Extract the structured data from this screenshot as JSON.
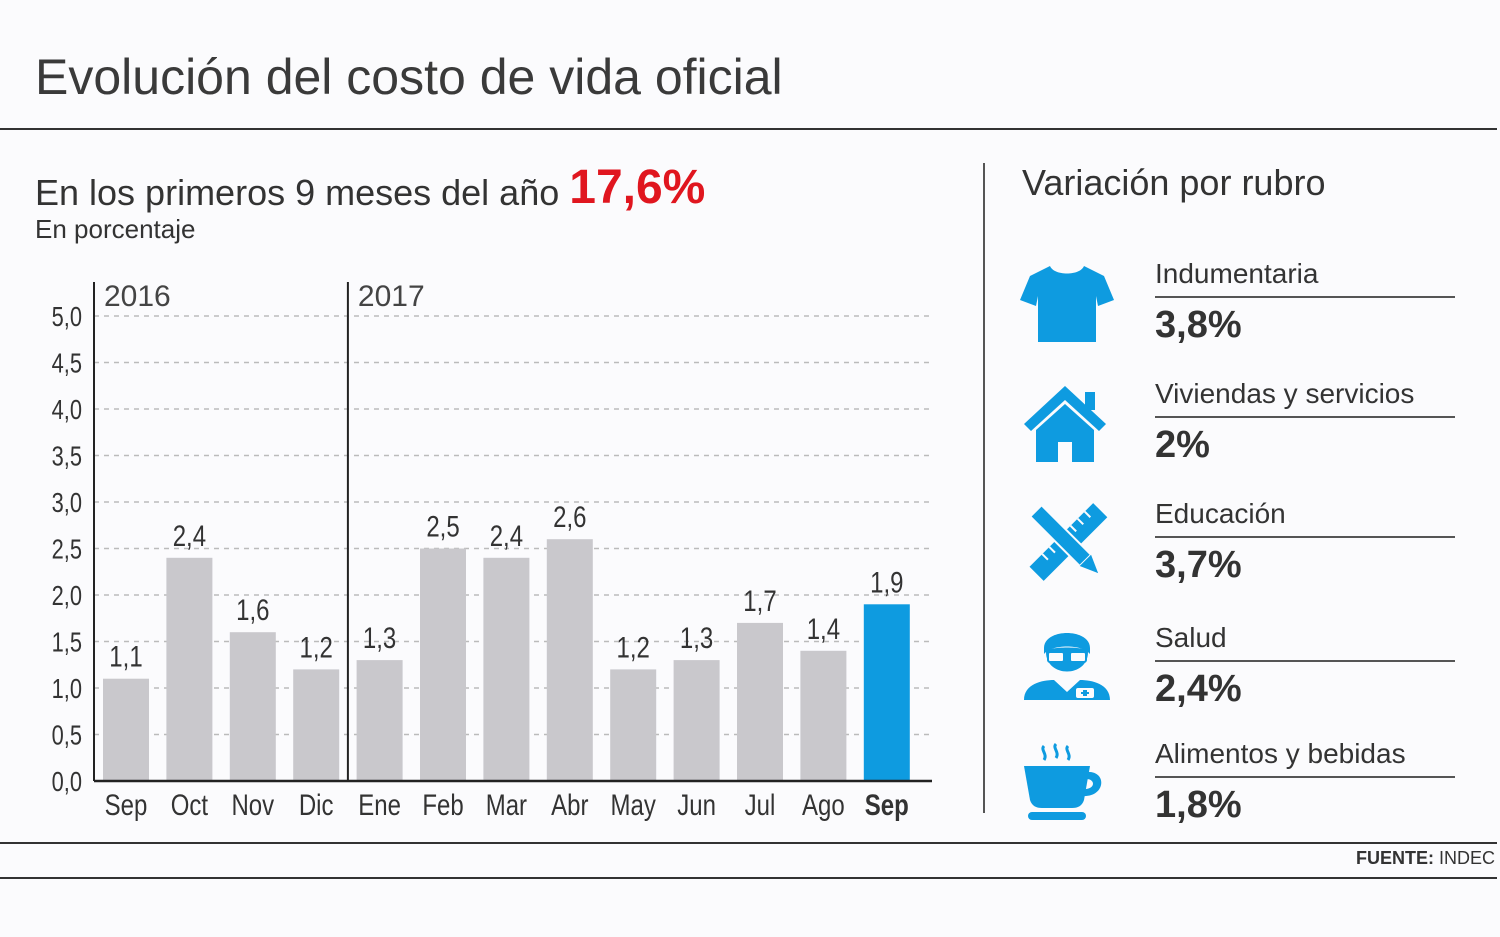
{
  "header": {
    "title": "Evolución del costo de vida oficial",
    "subtitle": "En los primeros 9 meses del año",
    "highlight": "17,6%",
    "unit": "En porcentaje"
  },
  "chart_data": {
    "type": "bar",
    "categories": [
      "Sep",
      "Oct",
      "Nov",
      "Dic",
      "Ene",
      "Feb",
      "Mar",
      "Abr",
      "May",
      "Jun",
      "Jul",
      "Ago",
      "Sep"
    ],
    "values": [
      1.1,
      2.4,
      1.6,
      1.2,
      1.3,
      2.5,
      2.4,
      2.6,
      1.2,
      1.3,
      1.7,
      1.4,
      1.9
    ],
    "value_labels": [
      "1,1",
      "2,4",
      "1,6",
      "1,2",
      "1,3",
      "2,5",
      "2,4",
      "2,6",
      "1,2",
      "1,3",
      "1,7",
      "1,4",
      "1,9"
    ],
    "yticks": [
      "0,0",
      "0,5",
      "1,0",
      "1,5",
      "2,0",
      "2,5",
      "3,0",
      "3,5",
      "4,0",
      "4,5",
      "5,0"
    ],
    "ylim": [
      0,
      5
    ],
    "year_markers": [
      {
        "label": "2016",
        "index": 0
      },
      {
        "label": "2017",
        "index": 4
      }
    ],
    "highlight_index": 12,
    "grid": true,
    "colors": {
      "bar": "#c9c8cc",
      "highlight": "#0e9be0",
      "grid": "#bbbbbb",
      "axis": "#222222"
    }
  },
  "rubros": {
    "title": "Variación por rubro",
    "items": [
      {
        "name": "Indumentaria",
        "value": "3,8%",
        "icon": "tshirt-icon"
      },
      {
        "name": "Viviendas y servicios",
        "value": "2%",
        "icon": "house-icon"
      },
      {
        "name": "Educación",
        "value": "3,7%",
        "icon": "ruler-pencil-icon"
      },
      {
        "name": "Salud",
        "value": "2,4%",
        "icon": "doctor-icon"
      },
      {
        "name": "Alimentos y bebidas",
        "value": "1,8%",
        "icon": "coffee-cup-icon"
      }
    ],
    "icon_color": "#0e9be0"
  },
  "footer": {
    "source_label": "FUENTE:",
    "source": "INDEC"
  }
}
